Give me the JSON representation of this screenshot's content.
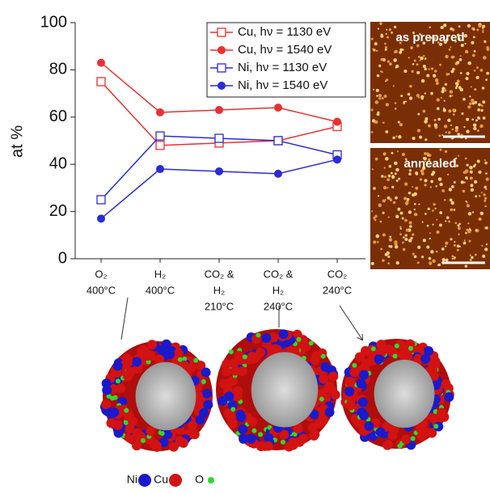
{
  "chart_data": {
    "type": "line",
    "ylabel": "at %",
    "categories": [
      [
        "O₂",
        "400°C"
      ],
      [
        "H₂",
        "400°C"
      ],
      [
        "CO₂ &",
        "H₂",
        "210°C"
      ],
      [
        "CO₂ &",
        "H₂",
        "240°C"
      ],
      [
        "CO₂",
        "240°C"
      ]
    ],
    "series": [
      {
        "name": "Cu, hν = 1130 eV",
        "color": "#e8312f",
        "marker": "square-open",
        "values": [
          75,
          48,
          49,
          50,
          56
        ]
      },
      {
        "name": "Cu, hν = 1540 eV",
        "color": "#e8312f",
        "marker": "circle",
        "values": [
          83,
          62,
          63,
          64,
          58
        ]
      },
      {
        "name": "Ni, hν = 1130 eV",
        "color": "#2b2bd8",
        "marker": "square-open",
        "values": [
          25,
          52,
          51,
          50,
          44
        ]
      },
      {
        "name": "Ni, hν = 1540 eV",
        "color": "#2b2bd8",
        "marker": "circle",
        "values": [
          17,
          38,
          37,
          36,
          42
        ]
      }
    ],
    "ylim": [
      0,
      100
    ],
    "yticks": [
      0,
      20,
      40,
      60,
      80,
      100
    ],
    "grid": false,
    "legend": "top-right"
  },
  "images": [
    "as prepared",
    "annealed"
  ],
  "particle_legend": [
    "Ni",
    "Cu",
    "O"
  ]
}
